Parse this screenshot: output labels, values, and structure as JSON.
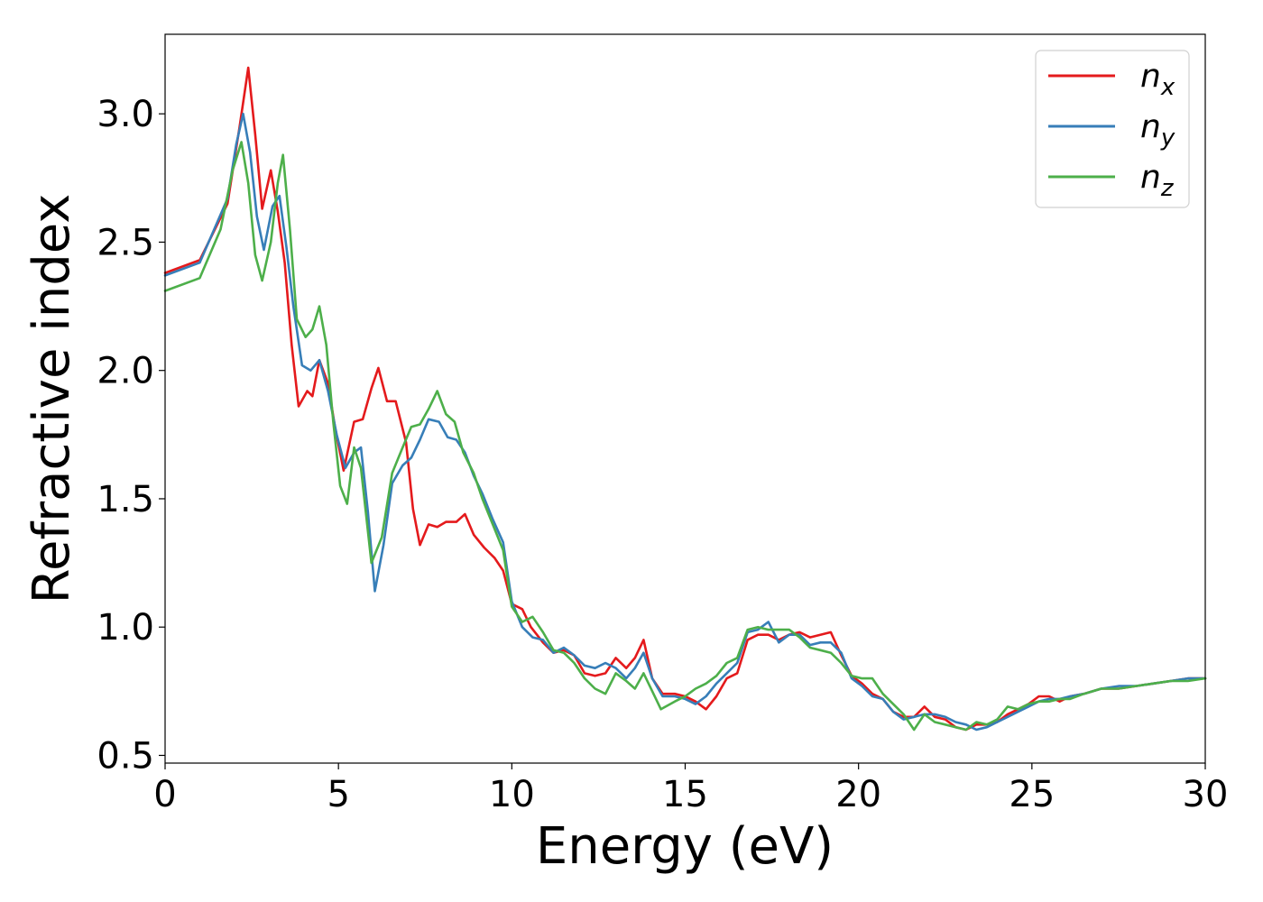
{
  "chart_data": {
    "type": "line",
    "title": "",
    "xlabel": "Energy (eV)",
    "ylabel": "Refractive index",
    "xlim": [
      0,
      30
    ],
    "ylim": [
      0.47,
      3.31
    ],
    "x_ticks": [
      0,
      5,
      10,
      15,
      20,
      25,
      30
    ],
    "x_tick_labels": [
      "0",
      "5",
      "10",
      "15",
      "20",
      "25",
      "30"
    ],
    "y_ticks": [
      0.5,
      1.0,
      1.5,
      2.0,
      2.5,
      3.0
    ],
    "y_tick_labels": [
      "0.5",
      "1.0",
      "1.5",
      "2.0",
      "2.5",
      "3.0"
    ],
    "grid": false,
    "legend": {
      "position": "top-right"
    },
    "series": [
      {
        "name": "n",
        "subscript": "x",
        "color": "#e41a1c",
        "points": [
          [
            0,
            2.38
          ],
          [
            1,
            2.43
          ],
          [
            1.8,
            2.65
          ],
          [
            2.15,
            2.95
          ],
          [
            2.4,
            3.18
          ],
          [
            2.6,
            2.92
          ],
          [
            2.8,
            2.63
          ],
          [
            3.05,
            2.78
          ],
          [
            3.25,
            2.62
          ],
          [
            3.45,
            2.42
          ],
          [
            3.65,
            2.1
          ],
          [
            3.85,
            1.86
          ],
          [
            4.1,
            1.92
          ],
          [
            4.25,
            1.9
          ],
          [
            4.45,
            2.04
          ],
          [
            4.7,
            1.95
          ],
          [
            4.9,
            1.78
          ],
          [
            5.15,
            1.61
          ],
          [
            5.45,
            1.8
          ],
          [
            5.7,
            1.81
          ],
          [
            5.95,
            1.93
          ],
          [
            6.15,
            2.01
          ],
          [
            6.4,
            1.88
          ],
          [
            6.65,
            1.88
          ],
          [
            6.95,
            1.72
          ],
          [
            7.15,
            1.46
          ],
          [
            7.35,
            1.32
          ],
          [
            7.6,
            1.4
          ],
          [
            7.85,
            1.39
          ],
          [
            8.1,
            1.41
          ],
          [
            8.4,
            1.41
          ],
          [
            8.65,
            1.44
          ],
          [
            8.9,
            1.36
          ],
          [
            9.2,
            1.31
          ],
          [
            9.5,
            1.27
          ],
          [
            9.75,
            1.22
          ],
          [
            10,
            1.09
          ],
          [
            10.3,
            1.07
          ],
          [
            10.55,
            1.0
          ],
          [
            10.9,
            0.94
          ],
          [
            11.2,
            0.9
          ],
          [
            11.5,
            0.91
          ],
          [
            11.8,
            0.89
          ],
          [
            12.1,
            0.82
          ],
          [
            12.4,
            0.81
          ],
          [
            12.7,
            0.82
          ],
          [
            13.0,
            0.88
          ],
          [
            13.3,
            0.84
          ],
          [
            13.55,
            0.88
          ],
          [
            13.8,
            0.95
          ],
          [
            14.05,
            0.8
          ],
          [
            14.35,
            0.74
          ],
          [
            14.7,
            0.74
          ],
          [
            15.0,
            0.73
          ],
          [
            15.3,
            0.71
          ],
          [
            15.6,
            0.68
          ],
          [
            15.9,
            0.73
          ],
          [
            16.2,
            0.8
          ],
          [
            16.5,
            0.82
          ],
          [
            16.8,
            0.95
          ],
          [
            17.1,
            0.97
          ],
          [
            17.4,
            0.97
          ],
          [
            17.7,
            0.95
          ],
          [
            18.0,
            0.97
          ],
          [
            18.3,
            0.98
          ],
          [
            18.6,
            0.96
          ],
          [
            18.9,
            0.97
          ],
          [
            19.2,
            0.98
          ],
          [
            19.5,
            0.89
          ],
          [
            19.8,
            0.81
          ],
          [
            20.1,
            0.78
          ],
          [
            20.4,
            0.74
          ],
          [
            20.7,
            0.72
          ],
          [
            21.0,
            0.67
          ],
          [
            21.3,
            0.65
          ],
          [
            21.6,
            0.65
          ],
          [
            21.9,
            0.69
          ],
          [
            22.2,
            0.65
          ],
          [
            22.5,
            0.64
          ],
          [
            22.8,
            0.61
          ],
          [
            23.1,
            0.6
          ],
          [
            23.4,
            0.62
          ],
          [
            23.7,
            0.62
          ],
          [
            24.0,
            0.63
          ],
          [
            24.3,
            0.66
          ],
          [
            24.6,
            0.68
          ],
          [
            24.9,
            0.7
          ],
          [
            25.2,
            0.73
          ],
          [
            25.5,
            0.73
          ],
          [
            25.8,
            0.71
          ],
          [
            26.1,
            0.73
          ],
          [
            26.5,
            0.74
          ],
          [
            27,
            0.76
          ],
          [
            27.5,
            0.76
          ],
          [
            28,
            0.77
          ],
          [
            28.5,
            0.78
          ],
          [
            29,
            0.79
          ],
          [
            29.5,
            0.8
          ],
          [
            30,
            0.8
          ]
        ]
      },
      {
        "name": "n",
        "subscript": "y",
        "color": "#377eb8",
        "points": [
          [
            0,
            2.37
          ],
          [
            1,
            2.42
          ],
          [
            1.8,
            2.67
          ],
          [
            2.05,
            2.88
          ],
          [
            2.25,
            3.0
          ],
          [
            2.45,
            2.85
          ],
          [
            2.65,
            2.6
          ],
          [
            2.85,
            2.47
          ],
          [
            3.1,
            2.64
          ],
          [
            3.3,
            2.68
          ],
          [
            3.5,
            2.48
          ],
          [
            3.7,
            2.25
          ],
          [
            3.95,
            2.02
          ],
          [
            4.2,
            2.0
          ],
          [
            4.45,
            2.04
          ],
          [
            4.7,
            1.92
          ],
          [
            4.95,
            1.75
          ],
          [
            5.2,
            1.62
          ],
          [
            5.45,
            1.68
          ],
          [
            5.65,
            1.7
          ],
          [
            5.85,
            1.45
          ],
          [
            6.05,
            1.14
          ],
          [
            6.3,
            1.32
          ],
          [
            6.55,
            1.56
          ],
          [
            6.85,
            1.63
          ],
          [
            7.1,
            1.66
          ],
          [
            7.35,
            1.73
          ],
          [
            7.6,
            1.81
          ],
          [
            7.9,
            1.8
          ],
          [
            8.15,
            1.74
          ],
          [
            8.4,
            1.73
          ],
          [
            8.65,
            1.68
          ],
          [
            8.9,
            1.59
          ],
          [
            9.15,
            1.52
          ],
          [
            9.45,
            1.42
          ],
          [
            9.75,
            1.33
          ],
          [
            10,
            1.1
          ],
          [
            10.3,
            1.0
          ],
          [
            10.6,
            0.96
          ],
          [
            10.9,
            0.95
          ],
          [
            11.2,
            0.9
          ],
          [
            11.5,
            0.92
          ],
          [
            11.8,
            0.89
          ],
          [
            12.1,
            0.85
          ],
          [
            12.4,
            0.84
          ],
          [
            12.7,
            0.86
          ],
          [
            13.0,
            0.84
          ],
          [
            13.3,
            0.8
          ],
          [
            13.55,
            0.84
          ],
          [
            13.8,
            0.9
          ],
          [
            14.05,
            0.8
          ],
          [
            14.35,
            0.73
          ],
          [
            14.7,
            0.73
          ],
          [
            15.0,
            0.72
          ],
          [
            15.3,
            0.7
          ],
          [
            15.6,
            0.73
          ],
          [
            15.9,
            0.78
          ],
          [
            16.2,
            0.82
          ],
          [
            16.5,
            0.86
          ],
          [
            16.8,
            0.98
          ],
          [
            17.1,
            0.99
          ],
          [
            17.4,
            1.02
          ],
          [
            17.7,
            0.94
          ],
          [
            18.0,
            0.97
          ],
          [
            18.3,
            0.97
          ],
          [
            18.6,
            0.93
          ],
          [
            18.9,
            0.94
          ],
          [
            19.2,
            0.94
          ],
          [
            19.5,
            0.9
          ],
          [
            19.8,
            0.8
          ],
          [
            20.1,
            0.77
          ],
          [
            20.4,
            0.73
          ],
          [
            20.7,
            0.72
          ],
          [
            21.0,
            0.67
          ],
          [
            21.3,
            0.64
          ],
          [
            21.6,
            0.65
          ],
          [
            21.9,
            0.66
          ],
          [
            22.2,
            0.66
          ],
          [
            22.5,
            0.65
          ],
          [
            22.8,
            0.63
          ],
          [
            23.1,
            0.62
          ],
          [
            23.4,
            0.6
          ],
          [
            23.7,
            0.61
          ],
          [
            24.0,
            0.63
          ],
          [
            24.3,
            0.65
          ],
          [
            24.6,
            0.67
          ],
          [
            24.9,
            0.69
          ],
          [
            25.2,
            0.71
          ],
          [
            25.5,
            0.72
          ],
          [
            25.8,
            0.72
          ],
          [
            26.1,
            0.73
          ],
          [
            26.5,
            0.74
          ],
          [
            27,
            0.76
          ],
          [
            27.5,
            0.77
          ],
          [
            28,
            0.77
          ],
          [
            28.5,
            0.78
          ],
          [
            29,
            0.79
          ],
          [
            29.5,
            0.8
          ],
          [
            30,
            0.8
          ]
        ]
      },
      {
        "name": "n",
        "subscript": "z",
        "color": "#4daf4a",
        "points": [
          [
            0,
            2.31
          ],
          [
            1,
            2.36
          ],
          [
            1.6,
            2.55
          ],
          [
            1.95,
            2.78
          ],
          [
            2.2,
            2.89
          ],
          [
            2.4,
            2.73
          ],
          [
            2.6,
            2.45
          ],
          [
            2.8,
            2.35
          ],
          [
            3.05,
            2.5
          ],
          [
            3.25,
            2.73
          ],
          [
            3.4,
            2.84
          ],
          [
            3.6,
            2.55
          ],
          [
            3.8,
            2.2
          ],
          [
            4.05,
            2.13
          ],
          [
            4.25,
            2.16
          ],
          [
            4.45,
            2.25
          ],
          [
            4.65,
            2.1
          ],
          [
            4.85,
            1.8
          ],
          [
            5.05,
            1.55
          ],
          [
            5.25,
            1.48
          ],
          [
            5.45,
            1.7
          ],
          [
            5.65,
            1.62
          ],
          [
            5.95,
            1.25
          ],
          [
            6.25,
            1.35
          ],
          [
            6.55,
            1.6
          ],
          [
            6.85,
            1.7
          ],
          [
            7.1,
            1.78
          ],
          [
            7.35,
            1.79
          ],
          [
            7.6,
            1.85
          ],
          [
            7.85,
            1.92
          ],
          [
            8.1,
            1.83
          ],
          [
            8.35,
            1.8
          ],
          [
            8.6,
            1.68
          ],
          [
            8.9,
            1.6
          ],
          [
            9.15,
            1.5
          ],
          [
            9.45,
            1.4
          ],
          [
            9.75,
            1.3
          ],
          [
            10,
            1.08
          ],
          [
            10.3,
            1.02
          ],
          [
            10.6,
            1.04
          ],
          [
            10.9,
            0.98
          ],
          [
            11.2,
            0.91
          ],
          [
            11.5,
            0.9
          ],
          [
            11.8,
            0.86
          ],
          [
            12.1,
            0.8
          ],
          [
            12.4,
            0.76
          ],
          [
            12.7,
            0.74
          ],
          [
            13.0,
            0.82
          ],
          [
            13.3,
            0.79
          ],
          [
            13.55,
            0.76
          ],
          [
            13.8,
            0.82
          ],
          [
            14.05,
            0.75
          ],
          [
            14.3,
            0.68
          ],
          [
            14.7,
            0.71
          ],
          [
            15.0,
            0.73
          ],
          [
            15.3,
            0.76
          ],
          [
            15.6,
            0.78
          ],
          [
            15.9,
            0.81
          ],
          [
            16.2,
            0.86
          ],
          [
            16.5,
            0.88
          ],
          [
            16.8,
            0.99
          ],
          [
            17.1,
            1.0
          ],
          [
            17.4,
            0.99
          ],
          [
            17.7,
            0.99
          ],
          [
            18.0,
            0.99
          ],
          [
            18.3,
            0.96
          ],
          [
            18.6,
            0.92
          ],
          [
            18.9,
            0.91
          ],
          [
            19.2,
            0.9
          ],
          [
            19.5,
            0.86
          ],
          [
            19.8,
            0.81
          ],
          [
            20.1,
            0.8
          ],
          [
            20.4,
            0.8
          ],
          [
            20.7,
            0.74
          ],
          [
            21.0,
            0.7
          ],
          [
            21.3,
            0.66
          ],
          [
            21.6,
            0.6
          ],
          [
            21.9,
            0.66
          ],
          [
            22.2,
            0.63
          ],
          [
            22.5,
            0.62
          ],
          [
            22.8,
            0.61
          ],
          [
            23.1,
            0.6
          ],
          [
            23.4,
            0.63
          ],
          [
            23.7,
            0.62
          ],
          [
            24.0,
            0.64
          ],
          [
            24.3,
            0.69
          ],
          [
            24.6,
            0.68
          ],
          [
            24.9,
            0.7
          ],
          [
            25.2,
            0.71
          ],
          [
            25.5,
            0.71
          ],
          [
            25.8,
            0.72
          ],
          [
            26.1,
            0.72
          ],
          [
            26.5,
            0.74
          ],
          [
            27,
            0.76
          ],
          [
            27.5,
            0.76
          ],
          [
            28,
            0.77
          ],
          [
            28.5,
            0.78
          ],
          [
            29,
            0.79
          ],
          [
            29.5,
            0.79
          ],
          [
            30,
            0.8
          ]
        ]
      }
    ]
  }
}
